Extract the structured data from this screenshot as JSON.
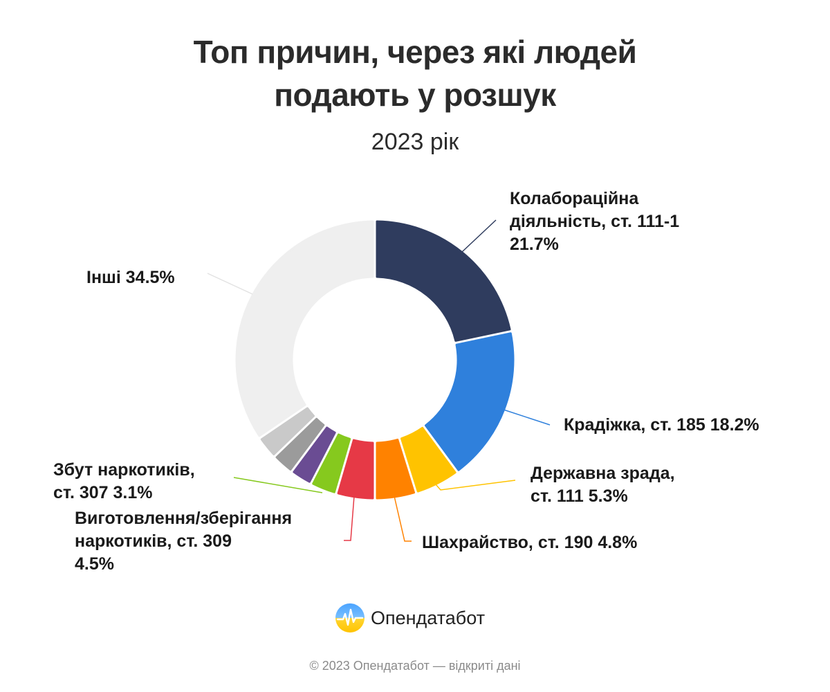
{
  "header": {
    "title_line1": "Топ причин, через які людей",
    "title_line2": "подають у розшук",
    "subtitle": "2023 рік"
  },
  "chart_data": {
    "type": "pie",
    "style": "donut",
    "slices": [
      {
        "name": "Колабораційна діяльність, ст. 111-1",
        "value": 21.7,
        "color": "#2f3c5e",
        "label_lines": [
          "Колабораційна",
          "діяльність, ст. 111-1",
          "21.7%"
        ]
      },
      {
        "name": "Крадіжка, ст. 185",
        "value": 18.2,
        "color": "#2f80dc",
        "label_lines": [
          "Крадіжка, ст. 185 18.2%"
        ]
      },
      {
        "name": "Державна зрада, ст. 111",
        "value": 5.3,
        "color": "#ffc300",
        "label_lines": [
          "Державна зрада,",
          "ст. 111 5.3%"
        ]
      },
      {
        "name": "Шахрайство, ст. 190",
        "value": 4.8,
        "color": "#ff8200",
        "label_lines": [
          "Шахрайство, ст. 190 4.8%"
        ]
      },
      {
        "name": "Виготовлення/зберігання наркотиків, ст. 309",
        "value": 4.5,
        "color": "#e63946",
        "label_lines": [
          "Виготовлення/зберігання",
          "наркотиків, ст. 309",
          "4.5%"
        ]
      },
      {
        "name": "Збут наркотиків, ст. 307",
        "value": 3.1,
        "color": "#86c91e",
        "label_lines": [
          "Збут наркотиків,",
          "ст. 307 3.1%"
        ]
      },
      {
        "name": "",
        "value": 2.6,
        "color": "#6a4c93",
        "label_lines": []
      },
      {
        "name": "",
        "value": 2.6,
        "color": "#9b9b9b",
        "label_lines": []
      },
      {
        "name": "",
        "value": 2.7,
        "color": "#c9c9c9",
        "label_lines": []
      },
      {
        "name": "Інші",
        "value": 34.5,
        "color": "#efefef",
        "label_lines": [
          "Інші 34.5%"
        ]
      }
    ]
  },
  "brand": {
    "name": "Опендатабот",
    "logo_icon": "opendatabot-logo-icon"
  },
  "footer": {
    "text": "© 2023 Опендатабот — відкриті дані"
  }
}
